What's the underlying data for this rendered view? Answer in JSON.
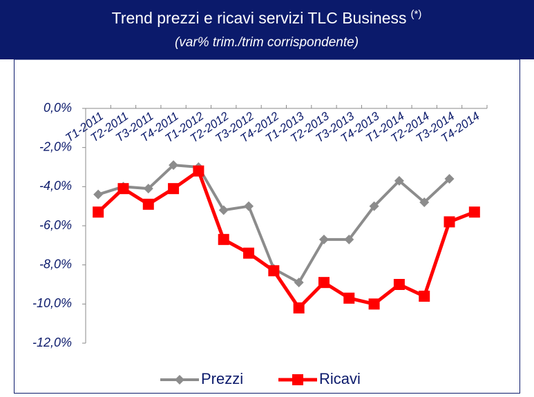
{
  "chart_data": {
    "type": "line",
    "title": "Trend prezzi e ricavi servizi TLC Business",
    "title_note": "(*)",
    "subtitle": "(var% trim./trim corrispondente)",
    "categories": [
      "T1-2011",
      "T2-2011",
      "T3-2011",
      "T4-2011",
      "T1-2012",
      "T2-2012",
      "T3-2012",
      "T4-2012",
      "T1-2013",
      "T2-2013",
      "T3-2013",
      "T4-2013",
      "T1-2014",
      "T2-2014",
      "T3-2014",
      "T4-2014"
    ],
    "series": [
      {
        "name": "Prezzi",
        "color": "#8c8c8c",
        "values": [
          -4.4,
          -4.0,
          -4.1,
          -2.9,
          -3.0,
          -5.2,
          -5.0,
          -8.2,
          -8.9,
          -6.7,
          -6.7,
          -5.0,
          -3.7,
          -4.8,
          -3.6,
          null
        ]
      },
      {
        "name": "Ricavi",
        "color": "#ff0000",
        "values": [
          -5.3,
          -4.1,
          -4.9,
          -4.1,
          -3.2,
          -6.7,
          -7.4,
          -8.3,
          -10.2,
          -8.9,
          -9.7,
          -10.0,
          -9.0,
          -9.6,
          -5.8,
          -5.3
        ]
      }
    ],
    "ylim": [
      -12,
      0
    ],
    "yticks": [
      {
        "value": 0,
        "label": "0,0%"
      },
      {
        "value": -2,
        "label": "-2,0%"
      },
      {
        "value": -4,
        "label": "-4,0%"
      },
      {
        "value": -6,
        "label": "-6,0%"
      },
      {
        "value": -8,
        "label": "-8,0%"
      },
      {
        "value": -10,
        "label": "-10,0%"
      },
      {
        "value": -12,
        "label": "-12,0%"
      }
    ],
    "legend": "bottom"
  }
}
